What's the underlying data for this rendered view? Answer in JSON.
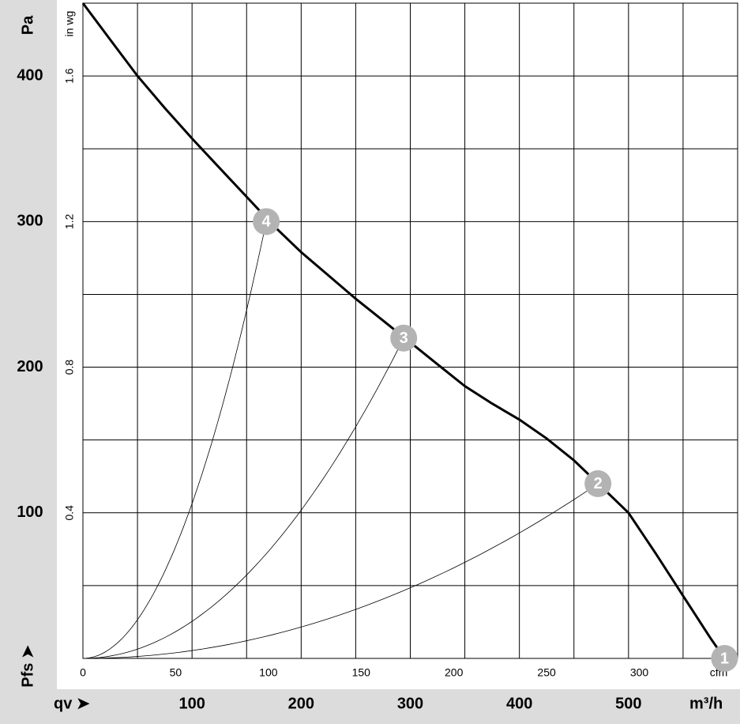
{
  "chart_data": {
    "type": "line",
    "y_label": "Pa",
    "y2_label": "in wg",
    "pressure_label": "Pfs ➤",
    "x_label": "m³/h",
    "x2_label": "cfm",
    "flow_label": "qv ➤",
    "xlim": [
      0,
      600
    ],
    "xticks": [
      100,
      200,
      300,
      400,
      500
    ],
    "x2lim": [
      0,
      353
    ],
    "x2ticks": [
      0,
      50,
      100,
      150,
      200,
      250,
      300
    ],
    "ylim": [
      0,
      450
    ],
    "yticks": [
      100,
      200,
      300,
      400
    ],
    "y2lim": [
      0,
      1.8
    ],
    "y2ticks": [
      0.4,
      0.8,
      1.2,
      1.6
    ],
    "xgrid": [
      50,
      100,
      150,
      200,
      250,
      300,
      350,
      400,
      450,
      500,
      550,
      600
    ],
    "ygrid": [
      50,
      100,
      150,
      200,
      250,
      300,
      350,
      400
    ],
    "grid": true,
    "series": [
      {
        "color": "#000000",
        "x": [
          0,
          25,
          50,
          75,
          100,
          125,
          150,
          175,
          200,
          225,
          250,
          275,
          300,
          325,
          350,
          375,
          400,
          425,
          450,
          475,
          500,
          525,
          550,
          575,
          588
        ],
        "values": [
          450,
          425,
          400,
          378,
          357,
          337,
          317,
          297,
          279,
          263,
          247,
          232,
          217,
          202,
          187,
          175,
          164,
          151,
          136,
          118,
          100,
          72,
          43,
          14,
          0
        ]
      }
    ],
    "operating_points": [
      {
        "label": "1",
        "x": 588,
        "y": 0
      },
      {
        "label": "2",
        "x": 472,
        "y": 120
      },
      {
        "label": "3",
        "x": 294,
        "y": 220
      },
      {
        "label": "4",
        "x": 168,
        "y": 300
      }
    ],
    "point_color": "#b3b3b3"
  }
}
